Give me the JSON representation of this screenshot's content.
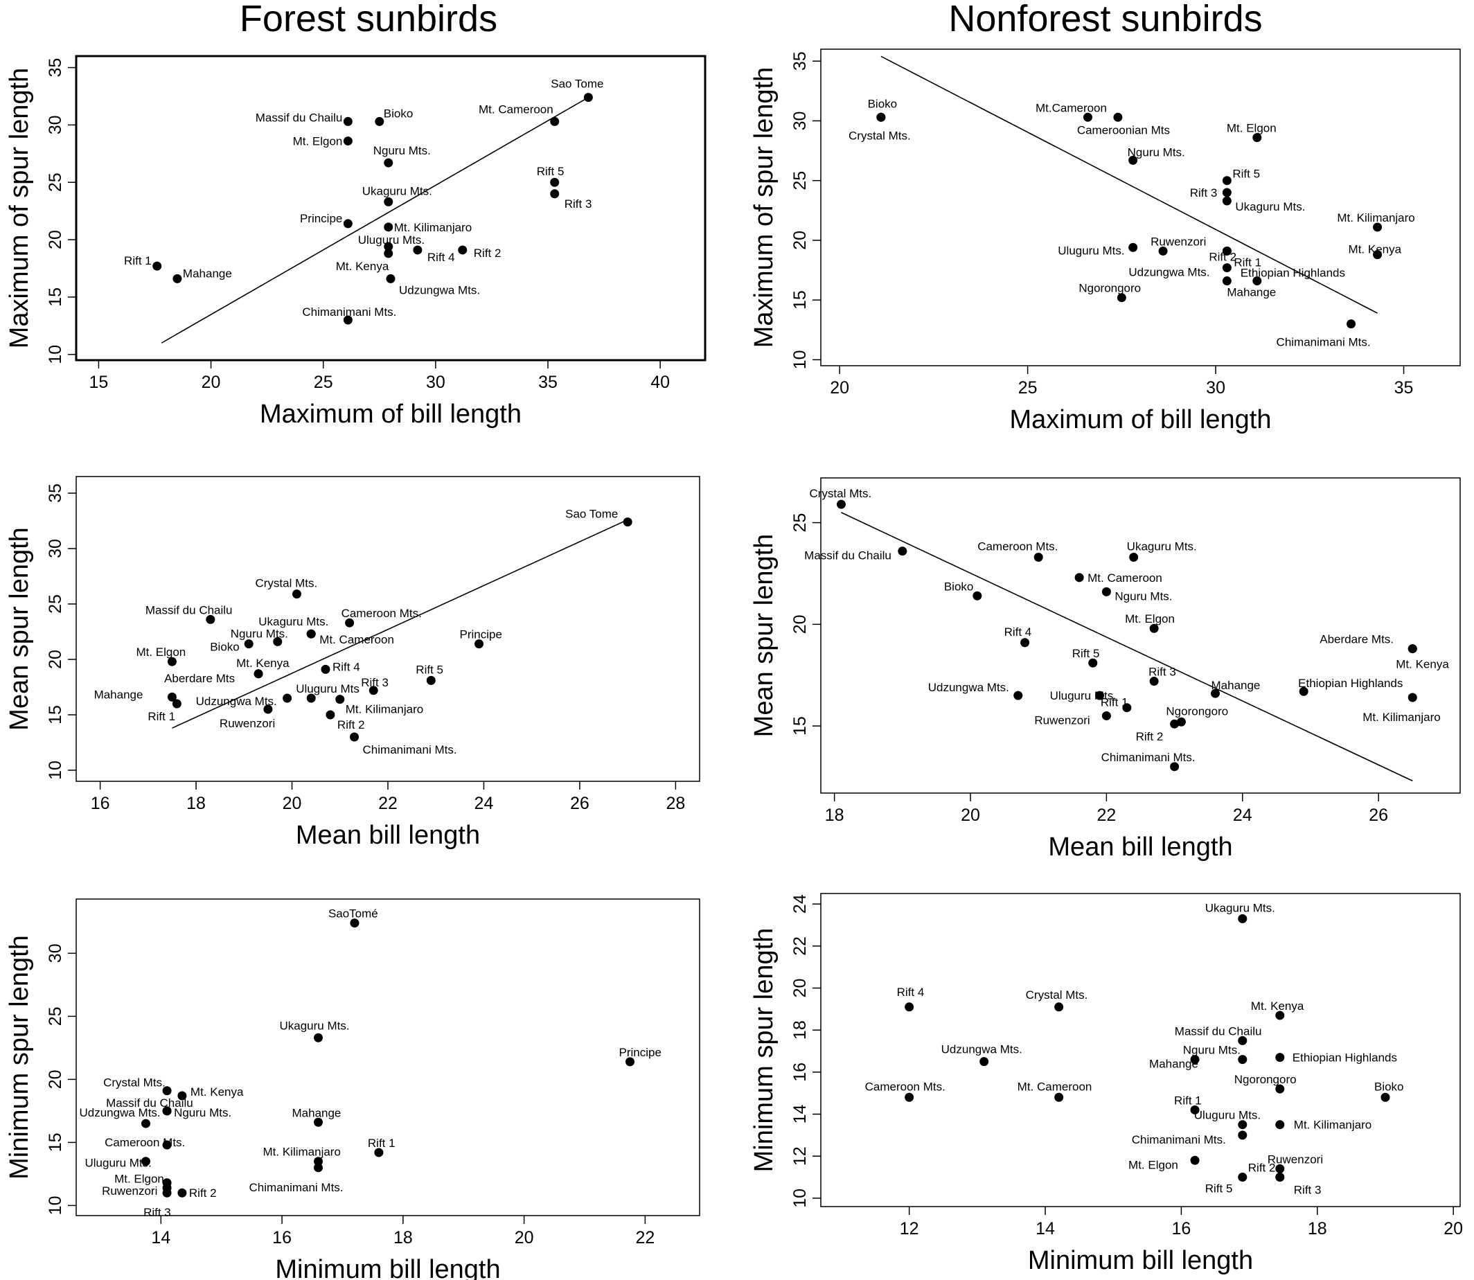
{
  "columns": [
    {
      "title": "Forest sunbirds"
    },
    {
      "title": "Nonforest sunbirds"
    }
  ],
  "chart_data": [
    {
      "type": "scatter",
      "xlabel": "Maximum of bill length",
      "ylabel": "Maximum of spur length",
      "xlim": [
        14,
        42
      ],
      "ylim": [
        9.5,
        36
      ],
      "xticks": [
        15,
        20,
        25,
        30,
        35,
        40
      ],
      "yticks": [
        10,
        15,
        20,
        25,
        30,
        35
      ],
      "grid": false,
      "trendline": [
        [
          17.8,
          11.0
        ],
        [
          36.8,
          32.4
        ]
      ],
      "points": [
        {
          "label": "Sao Tome",
          "x": 36.8,
          "y": 32.4
        },
        {
          "label": "Mt. Cameroon",
          "x": 35.3,
          "y": 30.3
        },
        {
          "label": "Massif du Chailu",
          "x": 26.1,
          "y": 30.3
        },
        {
          "label": "Bioko",
          "x": 27.5,
          "y": 30.3
        },
        {
          "label": "Mt. Elgon",
          "x": 26.1,
          "y": 28.6
        },
        {
          "label": "Nguru Mts.",
          "x": 27.9,
          "y": 26.7
        },
        {
          "label": "Rift 5",
          "x": 35.3,
          "y": 25.0
        },
        {
          "label": "Rift 3",
          "x": 35.3,
          "y": 24.0
        },
        {
          "label": "Ukaguru Mts.",
          "x": 27.9,
          "y": 23.3
        },
        {
          "label": "Principe",
          "x": 26.1,
          "y": 21.4
        },
        {
          "label": "Mt. Kilimanjaro",
          "x": 27.9,
          "y": 21.1
        },
        {
          "label": "Uluguru Mts.",
          "x": 27.9,
          "y": 19.4
        },
        {
          "label": "Rift 4",
          "x": 29.2,
          "y": 19.1
        },
        {
          "label": "Rift 2",
          "x": 31.2,
          "y": 19.1
        },
        {
          "label": "Mt. Kenya",
          "x": 27.9,
          "y": 18.8
        },
        {
          "label": "Rift 1",
          "x": 17.6,
          "y": 17.7
        },
        {
          "label": "Mahange",
          "x": 18.5,
          "y": 16.6
        },
        {
          "label": "Udzungwa Mts.",
          "x": 28.0,
          "y": 16.6
        },
        {
          "label": "Chimanimani Mts.",
          "x": 26.1,
          "y": 13.0
        }
      ]
    },
    {
      "type": "scatter",
      "xlabel": "Maximum of bill length",
      "ylabel": "Maximum of spur length",
      "xlim": [
        19.5,
        36.5
      ],
      "ylim": [
        9.5,
        36
      ],
      "xticks": [
        20,
        25,
        30,
        35
      ],
      "yticks": [
        10,
        15,
        20,
        25,
        30,
        35
      ],
      "grid": false,
      "trendline": [
        [
          21.1,
          35.4
        ],
        [
          34.3,
          13.9
        ]
      ],
      "points": [
        {
          "label": "Bioko",
          "x": 21.1,
          "y": 30.3
        },
        {
          "label": "Crystal Mts.",
          "x": 21.1,
          "y": 30.3
        },
        {
          "label": "Mt.Cameroon",
          "x": 26.6,
          "y": 30.3
        },
        {
          "label": "Cameroonian Mts",
          "x": 27.4,
          "y": 30.3
        },
        {
          "label": "Mt. Elgon",
          "x": 31.1,
          "y": 28.6
        },
        {
          "label": "Nguru Mts.",
          "x": 27.8,
          "y": 26.7
        },
        {
          "label": "Rift 5",
          "x": 30.3,
          "y": 25.0
        },
        {
          "label": "Rift 3",
          "x": 30.3,
          "y": 24.0
        },
        {
          "label": "Ukaguru Mts.",
          "x": 30.3,
          "y": 23.3
        },
        {
          "label": "Mt. Kilimanjaro",
          "x": 34.3,
          "y": 21.1
        },
        {
          "label": "Ruwenzori",
          "x": 28.6,
          "y": 19.1
        },
        {
          "label": "Uluguru Mts.",
          "x": 27.8,
          "y": 19.4
        },
        {
          "label": "Rift 2",
          "x": 30.3,
          "y": 19.1
        },
        {
          "label": "Rift 1",
          "x": 30.3,
          "y": 19.1
        },
        {
          "label": "Mt. Kenya",
          "x": 34.3,
          "y": 18.8
        },
        {
          "label": "Udzungwa Mts.",
          "x": 30.3,
          "y": 17.7
        },
        {
          "label": "Ethiopian Highlands",
          "x": 31.1,
          "y": 16.6
        },
        {
          "label": "Mahange",
          "x": 30.3,
          "y": 16.6
        },
        {
          "label": "Ngorongoro",
          "x": 27.5,
          "y": 15.2
        },
        {
          "label": "Chimanimani Mts.",
          "x": 33.6,
          "y": 13.0
        }
      ]
    },
    {
      "type": "scatter",
      "xlabel": "Mean bill length",
      "ylabel": "Mean spur length",
      "xlim": [
        15.5,
        28.5
      ],
      "ylim": [
        9,
        36.5
      ],
      "xticks": [
        16,
        18,
        20,
        22,
        24,
        26,
        28
      ],
      "yticks": [
        10,
        15,
        20,
        25,
        30,
        35
      ],
      "grid": false,
      "trendline": [
        [
          17.5,
          13.8
        ],
        [
          27.0,
          32.6
        ]
      ],
      "points": [
        {
          "label": "Sao Tome",
          "x": 27.0,
          "y": 32.4
        },
        {
          "label": "Crystal Mts.",
          "x": 20.1,
          "y": 25.9
        },
        {
          "label": "Massif du Chailu",
          "x": 18.3,
          "y": 23.6
        },
        {
          "label": "Cameroon Mts.",
          "x": 21.2,
          "y": 23.3
        },
        {
          "label": "Ukaguru Mts.",
          "x": 20.4,
          "y": 22.3
        },
        {
          "label": "Mt. Cameroon",
          "x": 20.4,
          "y": 22.3
        },
        {
          "label": "Nguru Mts.",
          "x": 19.7,
          "y": 21.6
        },
        {
          "label": "Bioko",
          "x": 19.1,
          "y": 21.4
        },
        {
          "label": "Principe",
          "x": 23.9,
          "y": 21.4
        },
        {
          "label": "Mt. Elgon",
          "x": 17.5,
          "y": 19.8
        },
        {
          "label": "Rift 4",
          "x": 20.7,
          "y": 19.1
        },
        {
          "label": "Mt. Kenya",
          "x": 19.3,
          "y": 18.7
        },
        {
          "label": "Aberdare Mts",
          "x": 19.3,
          "y": 18.7
        },
        {
          "label": "Rift 5",
          "x": 22.9,
          "y": 18.1
        },
        {
          "label": "Rift 3",
          "x": 21.7,
          "y": 17.2
        },
        {
          "label": "Uluguru Mts",
          "x": 20.4,
          "y": 16.5
        },
        {
          "label": "Mt. Kilimanjaro",
          "x": 21.0,
          "y": 16.4
        },
        {
          "label": "Udzungwa Mts.",
          "x": 19.9,
          "y": 16.5
        },
        {
          "label": "Mahange",
          "x": 17.5,
          "y": 16.6
        },
        {
          "label": "Rift 1",
          "x": 17.6,
          "y": 16.0
        },
        {
          "label": "Ruwenzori",
          "x": 19.5,
          "y": 15.5
        },
        {
          "label": "Rift 2",
          "x": 20.8,
          "y": 15.0
        },
        {
          "label": "Chimanimani Mts.",
          "x": 21.3,
          "y": 13.0
        }
      ]
    },
    {
      "type": "scatter",
      "xlabel": "Mean bill length",
      "ylabel": "Mean spur length",
      "xlim": [
        17.8,
        27.2
      ],
      "ylim": [
        11.7,
        27.2
      ],
      "xticks": [
        18,
        20,
        22,
        24,
        26
      ],
      "yticks": [
        15,
        20,
        25
      ],
      "grid": false,
      "trendline": [
        [
          18.1,
          25.5
        ],
        [
          26.5,
          12.3
        ]
      ],
      "points": [
        {
          "label": "Crystal Mts.",
          "x": 18.1,
          "y": 25.9
        },
        {
          "label": "Massif du Chailu",
          "x": 19.0,
          "y": 23.6
        },
        {
          "label": "Cameroon Mts.",
          "x": 21.0,
          "y": 23.3
        },
        {
          "label": "Ukaguru Mts.",
          "x": 22.4,
          "y": 23.3
        },
        {
          "label": "Mt. Cameroon",
          "x": 21.6,
          "y": 22.3
        },
        {
          "label": "Nguru Mts.",
          "x": 22.0,
          "y": 21.6
        },
        {
          "label": "Bioko",
          "x": 20.1,
          "y": 21.4
        },
        {
          "label": "Mt. Elgon",
          "x": 22.7,
          "y": 19.8
        },
        {
          "label": "Rift 4",
          "x": 20.8,
          "y": 19.1
        },
        {
          "label": "Aberdare Mts.",
          "x": 26.5,
          "y": 18.8
        },
        {
          "label": "Mt. Kenya",
          "x": 26.5,
          "y": 18.8
        },
        {
          "label": "Rift 5",
          "x": 21.8,
          "y": 18.1
        },
        {
          "label": "Rift 3",
          "x": 22.7,
          "y": 17.2
        },
        {
          "label": "Ethiopian Highlands",
          "x": 24.9,
          "y": 16.7
        },
        {
          "label": "Mahange",
          "x": 23.6,
          "y": 16.6
        },
        {
          "label": "Udzungwa Mts.",
          "x": 20.7,
          "y": 16.5
        },
        {
          "label": "Uluguru Mts.",
          "x": 21.9,
          "y": 16.5
        },
        {
          "label": "Mt. Kilimanjaro",
          "x": 26.5,
          "y": 16.4
        },
        {
          "label": "Rift 1",
          "x": 22.3,
          "y": 15.9
        },
        {
          "label": "Ruwenzori",
          "x": 22.0,
          "y": 15.5
        },
        {
          "label": "Ngorongoro",
          "x": 23.1,
          "y": 15.2
        },
        {
          "label": "Rift 2",
          "x": 23.0,
          "y": 15.1
        },
        {
          "label": "Chimanimani Mts.",
          "x": 23.0,
          "y": 13.0
        }
      ]
    },
    {
      "type": "scatter",
      "xlabel": "Minimum bill length",
      "ylabel": "Minimum spur length",
      "xlim": [
        12.6,
        22.9
      ],
      "ylim": [
        9.2,
        34.3
      ],
      "xticks": [
        14,
        16,
        18,
        20,
        22
      ],
      "yticks": [
        10,
        15,
        20,
        25,
        30
      ],
      "grid": false,
      "trendline": null,
      "points": [
        {
          "label": "SaoTomé",
          "x": 17.2,
          "y": 32.4
        },
        {
          "label": "Ukaguru Mts.",
          "x": 16.6,
          "y": 23.3
        },
        {
          "label": "Principe",
          "x": 21.75,
          "y": 21.4
        },
        {
          "label": "Crystal Mts.",
          "x": 14.1,
          "y": 19.1
        },
        {
          "label": "Mt. Kenya",
          "x": 14.35,
          "y": 18.7
        },
        {
          "label": "Massif du Chailu",
          "x": 14.1,
          "y": 17.5
        },
        {
          "label": "Udzungwa Mts.",
          "x": 13.75,
          "y": 16.5
        },
        {
          "label": "Nguru Mts.",
          "x": 14.1,
          "y": 17.5
        },
        {
          "label": "Mahange",
          "x": 16.6,
          "y": 16.6
        },
        {
          "label": "Cameroon Mts.",
          "x": 14.1,
          "y": 14.8
        },
        {
          "label": "Rift 1",
          "x": 17.6,
          "y": 14.2
        },
        {
          "label": "Uluguru Mts.",
          "x": 13.75,
          "y": 13.5
        },
        {
          "label": "Mt. Kilimanjaro",
          "x": 16.6,
          "y": 13.5
        },
        {
          "label": "Chimanimani Mts.",
          "x": 16.6,
          "y": 13.0
        },
        {
          "label": "Mt. Elgon",
          "x": 14.1,
          "y": 11.8
        },
        {
          "label": "Ruwenzori",
          "x": 14.1,
          "y": 11.4
        },
        {
          "label": "Rift 2",
          "x": 14.35,
          "y": 11.0
        },
        {
          "label": "Rift 3",
          "x": 14.1,
          "y": 11.0
        }
      ]
    },
    {
      "type": "scatter",
      "xlabel": "Minimum bill length",
      "ylabel": "Minimum spur length",
      "xlim": [
        10.7,
        20.1
      ],
      "ylim": [
        9.6,
        24.5
      ],
      "xticks": [
        12,
        14,
        16,
        18,
        20
      ],
      "yticks": [
        10,
        12,
        14,
        16,
        18,
        20,
        22,
        24
      ],
      "grid": false,
      "trendline": null,
      "points": [
        {
          "label": "Ukaguru Mts.",
          "x": 16.9,
          "y": 23.3
        },
        {
          "label": "Rift 4",
          "x": 12.0,
          "y": 19.1
        },
        {
          "label": "Crystal Mts.",
          "x": 14.2,
          "y": 19.1
        },
        {
          "label": "Mt. Kenya",
          "x": 17.45,
          "y": 18.7
        },
        {
          "label": "Massif du Chailu",
          "x": 16.9,
          "y": 17.5
        },
        {
          "label": "Ethiopian Highlands",
          "x": 17.45,
          "y": 16.7
        },
        {
          "label": "Udzungwa Mts.",
          "x": 13.1,
          "y": 16.5
        },
        {
          "label": "Nguru Mts.",
          "x": 16.9,
          "y": 16.6
        },
        {
          "label": "Mahange",
          "x": 16.2,
          "y": 16.6
        },
        {
          "label": "Ngorongoro",
          "x": 17.45,
          "y": 15.2
        },
        {
          "label": "Cameroon Mts.",
          "x": 12.0,
          "y": 14.8
        },
        {
          "label": "Mt. Cameroon",
          "x": 14.2,
          "y": 14.8
        },
        {
          "label": "Bioko",
          "x": 19.0,
          "y": 14.8
        },
        {
          "label": "Rift 1",
          "x": 16.2,
          "y": 14.2
        },
        {
          "label": "Uluguru Mts.",
          "x": 16.9,
          "y": 13.5
        },
        {
          "label": "Mt. Kilimanjaro",
          "x": 17.45,
          "y": 13.5
        },
        {
          "label": "Chimanimani Mts.",
          "x": 16.9,
          "y": 13.0
        },
        {
          "label": "Mt. Elgon",
          "x": 16.2,
          "y": 11.8
        },
        {
          "label": "Ruwenzori",
          "x": 17.45,
          "y": 11.4
        },
        {
          "label": "Rift 2",
          "x": 17.45,
          "y": 11.0
        },
        {
          "label": "Rift 5",
          "x": 16.9,
          "y": 11.0
        },
        {
          "label": "Rift 3",
          "x": 17.45,
          "y": 11.0
        }
      ]
    }
  ]
}
